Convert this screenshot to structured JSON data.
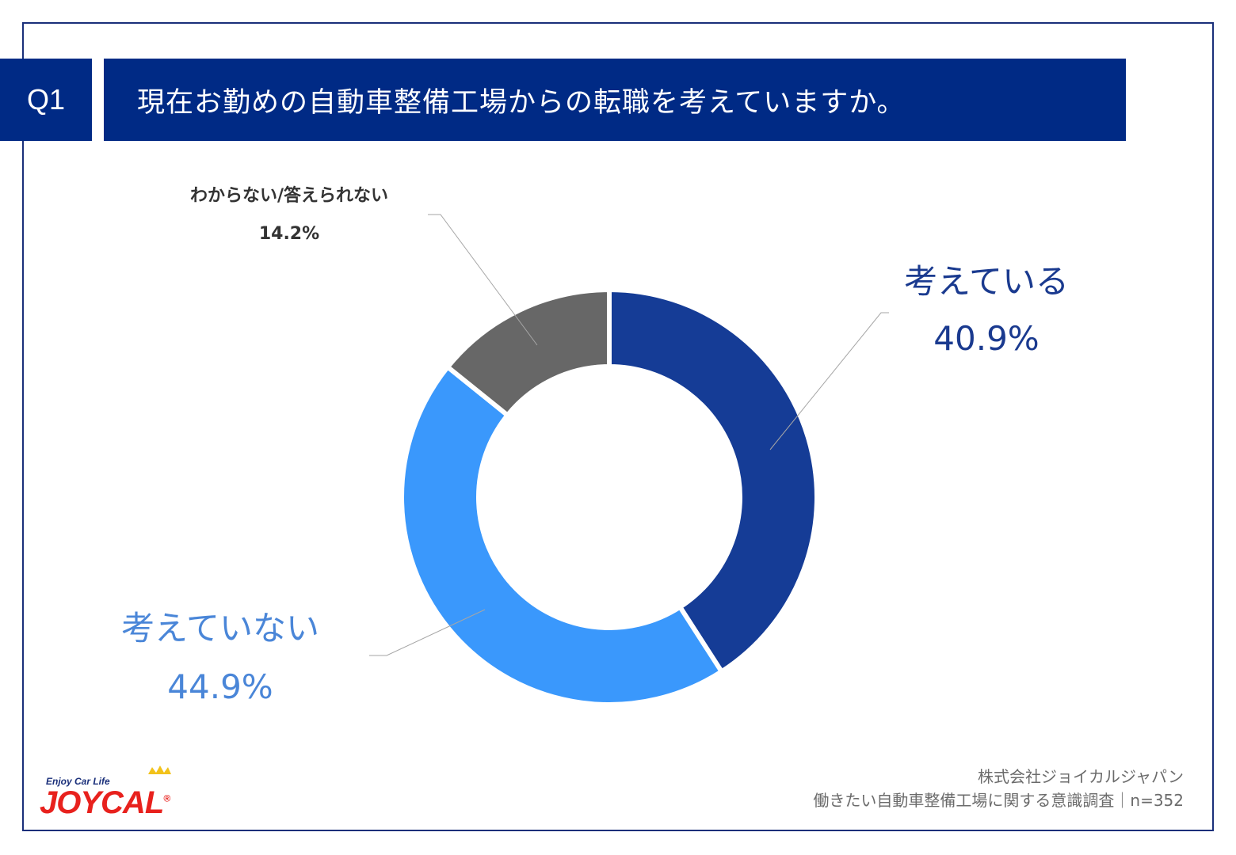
{
  "header": {
    "question_no": "Q1",
    "question_text": "現在お勤めの自動車整備工場からの転職を考えていますか。"
  },
  "colors": {
    "header_bg": "#002a85",
    "frame": "#1a2f7a",
    "thinking": "#153c96",
    "not_thinking": "#3a98fc",
    "unknown": "#676767"
  },
  "chart_data": {
    "type": "pie",
    "variant": "donut",
    "start": "12 o'clock, clockwise",
    "slices": [
      {
        "label": "考えている",
        "value": 40.9,
        "value_label": "40.9%",
        "color": "#153c96"
      },
      {
        "label": "考えていない",
        "value": 44.9,
        "value_label": "44.9%",
        "color": "#3a98fc"
      },
      {
        "label": "わからない/答えられない",
        "value": 14.2,
        "value_label": "14.2%",
        "color": "#676767"
      }
    ]
  },
  "logo": {
    "tagline": "Enjoy Car Life",
    "wordmark": "JOYCAL",
    "registered": "®"
  },
  "source": {
    "company": "株式会社ジョイカルジャパン",
    "survey": "働きたい自動車整備工場に関する意識調査｜n=352"
  }
}
